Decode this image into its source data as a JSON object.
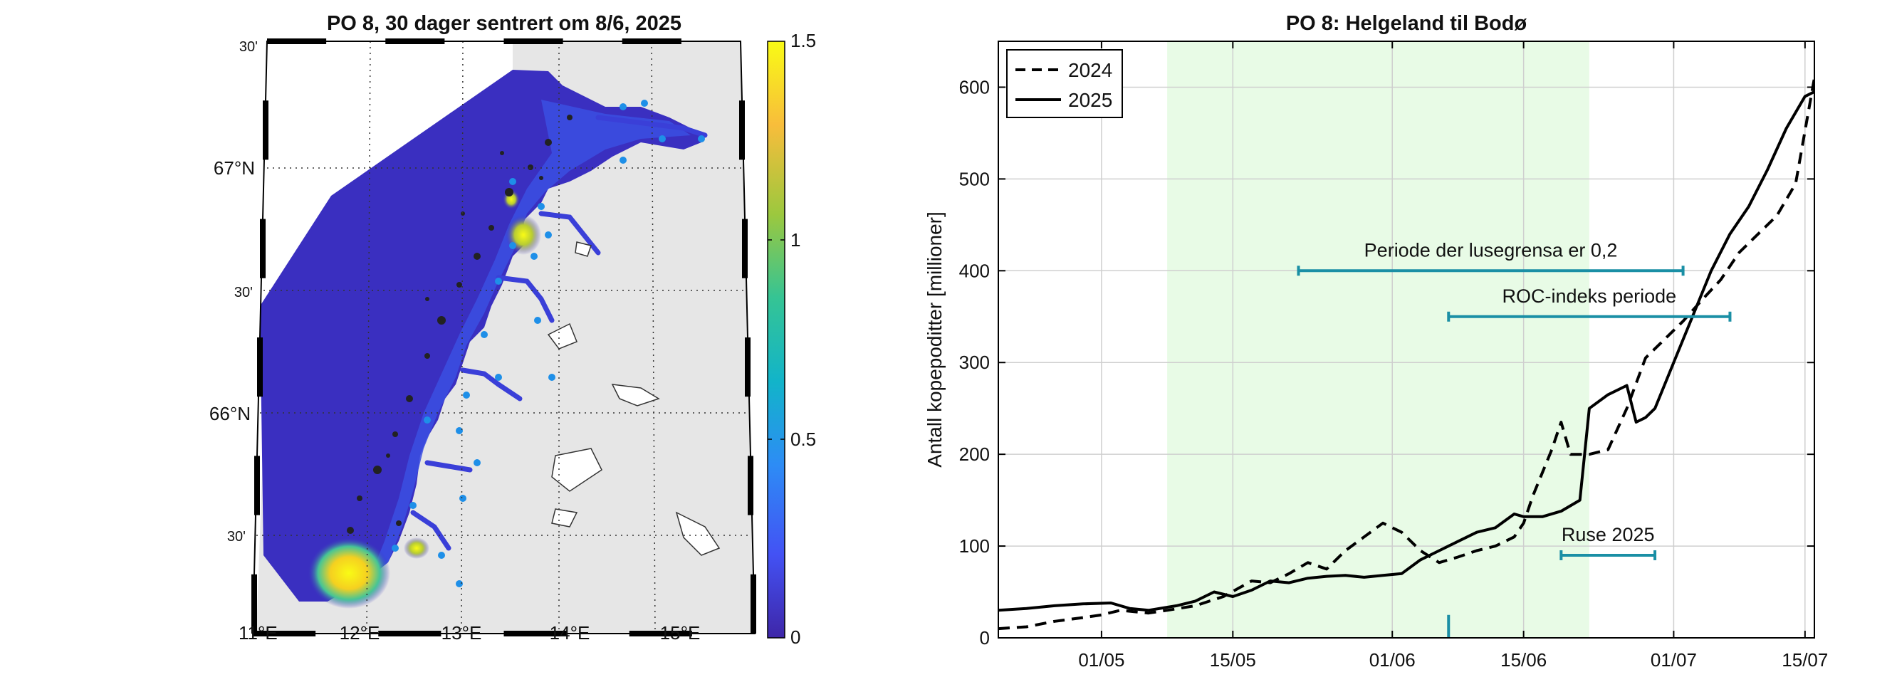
{
  "map": {
    "title": "PO 8, 30 dager sentrert om 8/6, 2025",
    "lon_labels": [
      "11°E",
      "12°E",
      "13°E",
      "14°E",
      "15°E"
    ],
    "lat_labels": [
      "67°N",
      "66°N"
    ],
    "minute_labels": [
      "30'",
      "30'",
      "30'"
    ],
    "colorbar": {
      "ticks": [
        "1.5",
        "1",
        "0.5",
        "0"
      ],
      "range": [
        0,
        1.5
      ],
      "colors": [
        "#3e26a8",
        "#4352f4",
        "#2d8cf5",
        "#12b4c9",
        "#35c494",
        "#9cc83e",
        "#f8bd3b",
        "#f9fb15"
      ]
    },
    "colors": {
      "sea": "#3a2fc0",
      "land": "#e6e6e6",
      "station": "#1e8fe8"
    }
  },
  "chart_data": {
    "type": "line",
    "title": "PO 8: Helgeland til Bodø",
    "xlabel": "",
    "ylabel": "Antall kopepoditter [millioner]",
    "x_unit": "day of year",
    "xlim": [
      110,
      197
    ],
    "ylim": [
      0,
      650
    ],
    "yticks": [
      0,
      100,
      200,
      300,
      400,
      500,
      600
    ],
    "ytick_labels": [
      "0",
      "100",
      "200",
      "300",
      "400",
      "500",
      "600"
    ],
    "xticks": [
      121,
      135,
      152,
      166,
      182,
      196
    ],
    "xtick_labels": [
      "01/05",
      "15/05",
      "01/06",
      "15/06",
      "01/07",
      "15/07"
    ],
    "grid": true,
    "legend_position": "top-left",
    "shaded_period": {
      "start": 128,
      "end": 173,
      "color": "#e8fbe6"
    },
    "series": [
      {
        "name": "2024",
        "style": "dashed",
        "x": [
          110,
          113,
          116,
          119,
          121,
          123,
          126,
          128,
          131,
          134,
          137,
          139,
          141,
          143,
          145,
          147,
          149,
          151,
          153,
          155,
          157,
          159,
          161,
          163,
          165,
          166,
          167,
          169,
          170,
          171,
          173,
          175,
          177,
          179,
          181,
          183,
          185,
          187,
          189,
          191,
          193,
          195,
          197
        ],
        "values": [
          10,
          12,
          18,
          22,
          25,
          30,
          27,
          30,
          35,
          45,
          62,
          60,
          70,
          82,
          75,
          95,
          110,
          125,
          115,
          95,
          82,
          88,
          95,
          100,
          110,
          125,
          155,
          205,
          235,
          200,
          200,
          205,
          250,
          305,
          325,
          345,
          368,
          390,
          420,
          440,
          460,
          495,
          610
        ]
      },
      {
        "name": "2025",
        "style": "solid",
        "x": [
          110,
          113,
          116,
          119,
          122,
          124,
          126,
          129,
          131,
          133,
          135,
          137,
          139,
          141,
          143,
          145,
          147,
          149,
          151,
          153,
          155,
          157,
          159,
          161,
          163,
          165,
          166,
          168,
          170,
          172,
          173,
          175,
          177,
          178,
          179,
          180,
          182,
          184,
          186,
          188,
          190,
          192,
          194,
          196,
          197
        ],
        "values": [
          30,
          32,
          35,
          37,
          38,
          32,
          30,
          35,
          40,
          50,
          45,
          52,
          62,
          60,
          65,
          67,
          68,
          66,
          68,
          70,
          85,
          95,
          105,
          115,
          120,
          135,
          132,
          132,
          138,
          150,
          250,
          265,
          275,
          235,
          240,
          250,
          300,
          350,
          400,
          440,
          470,
          510,
          555,
          590,
          595
        ]
      }
    ],
    "annotations": [
      {
        "label": "Periode der lusegrensa er 0,2",
        "x_start": 142,
        "x_end": 183,
        "y": 400
      },
      {
        "label": "ROC-indeks periode",
        "x_start": 158,
        "x_end": 188,
        "y": 350
      },
      {
        "label": "Ruse 2025",
        "x_start": 170,
        "x_end": 180,
        "y": 90
      }
    ],
    "marker": {
      "x": 158,
      "y_from": 0,
      "y_to": 25
    },
    "colors": {
      "annotation": "#1a8fa5",
      "grid": "#cfcfcf",
      "line": "#000000"
    }
  }
}
